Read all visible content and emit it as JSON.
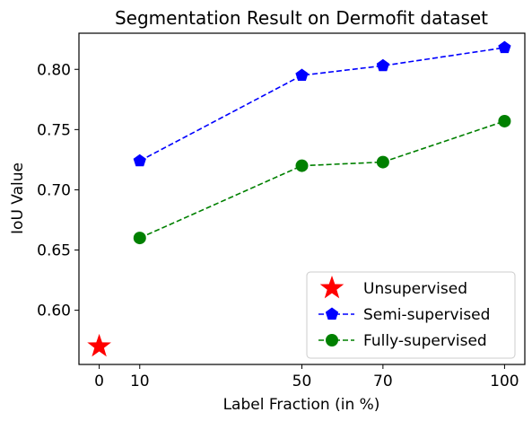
{
  "chart_data": {
    "type": "line",
    "title": "Segmentation Result on Dermofit dataset",
    "xlabel": "Label Fraction (in %)",
    "ylabel": "IoU Value",
    "xlim": [
      -5,
      105
    ],
    "ylim": [
      0.555,
      0.83
    ],
    "xticks": [
      0,
      10,
      50,
      70,
      100
    ],
    "yticks": [
      0.6,
      0.65,
      0.7,
      0.75,
      0.8
    ],
    "ytick_labels": [
      "0.60",
      "0.65",
      "0.70",
      "0.75",
      "0.80"
    ],
    "grid": false,
    "legend_position": "bottom-right",
    "series": [
      {
        "name": "Unsupervised",
        "color": "#ff0000",
        "marker": "star",
        "linestyle": "none",
        "x": [
          0
        ],
        "y": [
          0.57
        ]
      },
      {
        "name": "Semi-supervised",
        "color": "#0000ff",
        "marker": "pentagon",
        "linestyle": "dashed",
        "x": [
          10,
          50,
          70,
          100
        ],
        "y": [
          0.724,
          0.795,
          0.803,
          0.818
        ]
      },
      {
        "name": "Fully-supervised",
        "color": "#008000",
        "marker": "circle",
        "linestyle": "dashed",
        "x": [
          10,
          50,
          70,
          100
        ],
        "y": [
          0.66,
          0.72,
          0.723,
          0.757
        ]
      }
    ]
  }
}
